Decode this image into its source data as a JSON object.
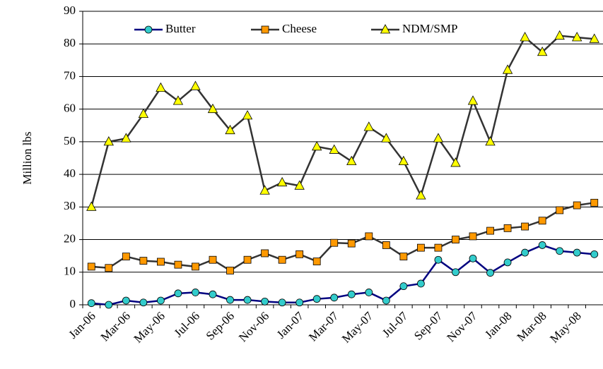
{
  "chart_data": {
    "type": "line",
    "y_label": "Million lbs",
    "categories": [
      "Jan-06",
      null,
      "Mar-06",
      null,
      "May-06",
      null,
      "Jul-06",
      null,
      "Sep-06",
      null,
      "Nov-06",
      null,
      "Jan-07",
      null,
      "Mar-07",
      null,
      "May-07",
      null,
      "Jul-07",
      null,
      "Sep-07",
      null,
      "Nov-07",
      null,
      "Jan-08",
      null,
      "Mar-08",
      null,
      "May-08",
      null
    ],
    "series": [
      {
        "name": "Butter",
        "color": "#33cccc",
        "line_color": "#000080",
        "marker": "circle",
        "values": [
          0.5,
          0,
          1.3,
          0.7,
          1.3,
          3.5,
          3.8,
          3.2,
          1.5,
          1.5,
          1,
          0.7,
          0.7,
          1.8,
          2.2,
          3.2,
          3.8,
          1.3,
          5.7,
          6.5,
          13.8,
          10,
          14.2,
          9.8,
          13,
          16,
          18.3,
          16.5,
          16,
          15.5
        ]
      },
      {
        "name": "Cheese",
        "color": "#ff9900",
        "line_color": "#333333",
        "marker": "square",
        "values": [
          11.7,
          11.3,
          14.8,
          13.5,
          13.2,
          12.3,
          11.7,
          13.8,
          10.5,
          13.8,
          15.8,
          13.8,
          15.5,
          13.3,
          19,
          18.8,
          21,
          18.3,
          14.8,
          17.5,
          17.5,
          20,
          21,
          22.7,
          23.5,
          24,
          25.8,
          29,
          30.5,
          31.3
        ]
      },
      {
        "name": "NDM/SMP",
        "color": "#ffff00",
        "line_color": "#333333",
        "marker": "triangle",
        "values": [
          30,
          50,
          51,
          58.5,
          66.5,
          62.5,
          67,
          60,
          53.5,
          58,
          35,
          37.5,
          36.5,
          48.5,
          47.5,
          44,
          54.5,
          51,
          44,
          33.5,
          51,
          43.5,
          62.5,
          50,
          72,
          82,
          77.5,
          82.5,
          82,
          81.5
        ]
      }
    ],
    "ylim": [
      0,
      90
    ],
    "yticks": [
      0,
      10,
      20,
      30,
      40,
      50,
      60,
      70,
      80,
      90
    ],
    "grid": true,
    "legend": "top"
  }
}
